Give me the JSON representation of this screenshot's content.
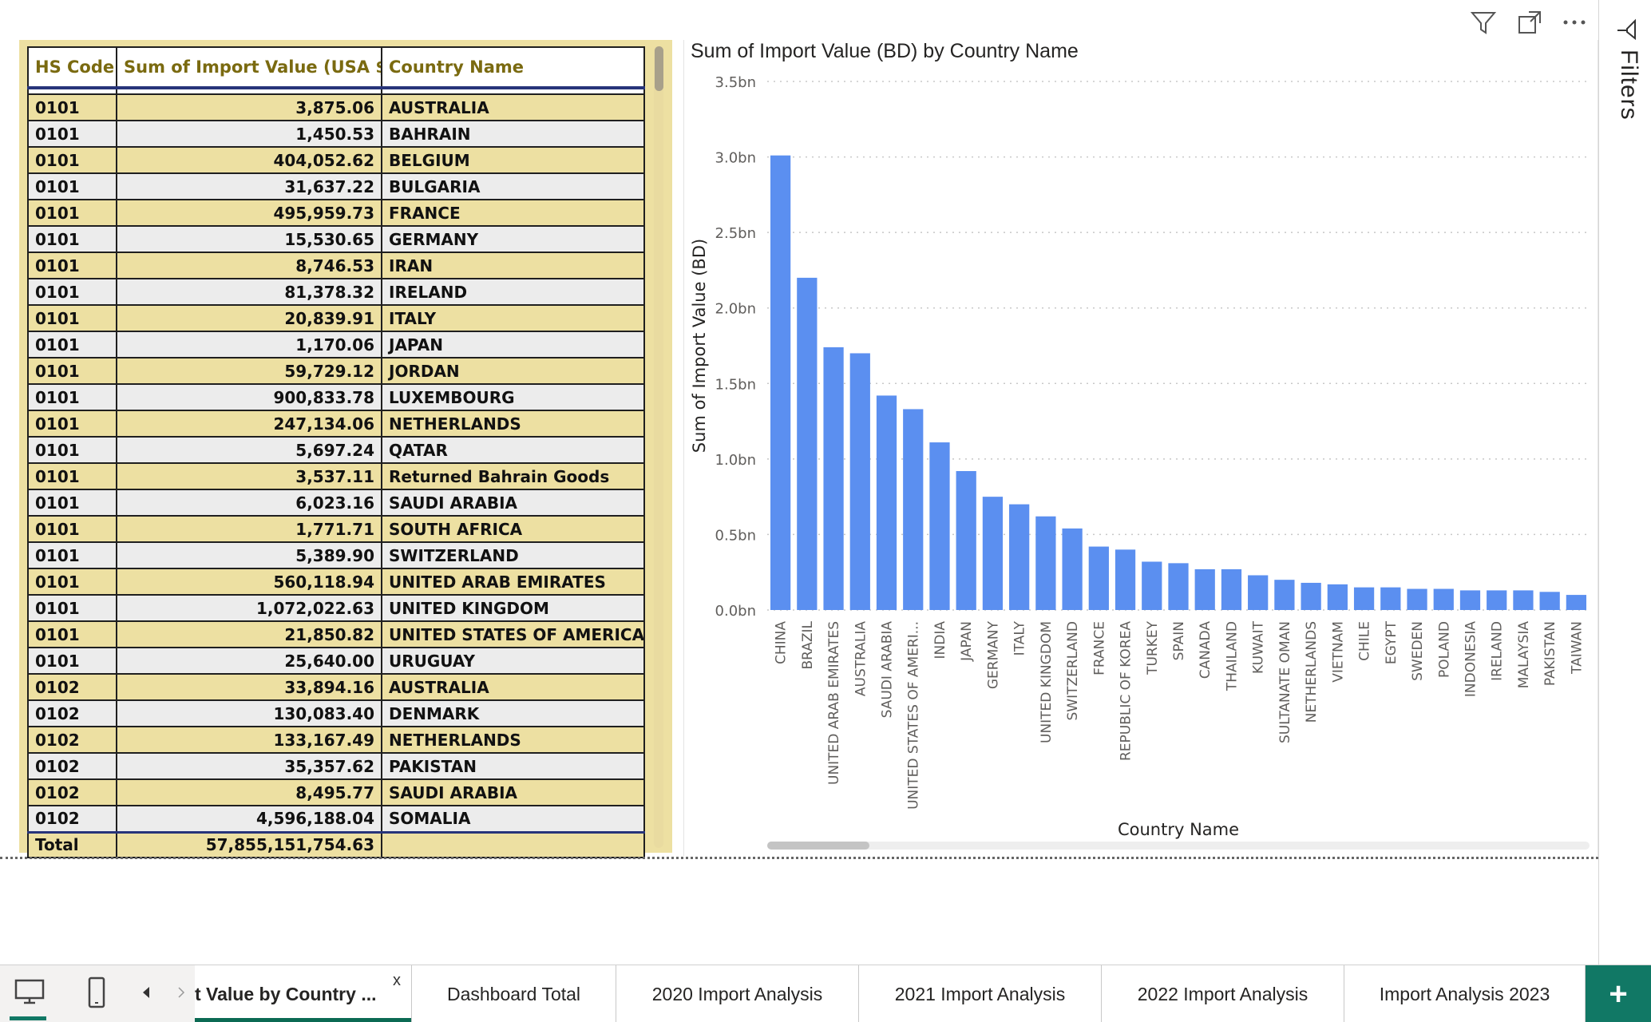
{
  "table": {
    "headers": [
      "HS Code",
      "Sum of Import Value (USA $)",
      "Country Name"
    ],
    "rows": [
      [
        "0101",
        "3,875.06",
        "AUSTRALIA"
      ],
      [
        "0101",
        "1,450.53",
        "BAHRAIN"
      ],
      [
        "0101",
        "404,052.62",
        "BELGIUM"
      ],
      [
        "0101",
        "31,637.22",
        "BULGARIA"
      ],
      [
        "0101",
        "495,959.73",
        "FRANCE"
      ],
      [
        "0101",
        "15,530.65",
        "GERMANY"
      ],
      [
        "0101",
        "8,746.53",
        "IRAN"
      ],
      [
        "0101",
        "81,378.32",
        "IRELAND"
      ],
      [
        "0101",
        "20,839.91",
        "ITALY"
      ],
      [
        "0101",
        "1,170.06",
        "JAPAN"
      ],
      [
        "0101",
        "59,729.12",
        "JORDAN"
      ],
      [
        "0101",
        "900,833.78",
        "LUXEMBOURG"
      ],
      [
        "0101",
        "247,134.06",
        "NETHERLANDS"
      ],
      [
        "0101",
        "5,697.24",
        "QATAR"
      ],
      [
        "0101",
        "3,537.11",
        "Returned Bahrain Goods"
      ],
      [
        "0101",
        "6,023.16",
        "SAUDI ARABIA"
      ],
      [
        "0101",
        "1,771.71",
        "SOUTH AFRICA"
      ],
      [
        "0101",
        "5,389.90",
        "SWITZERLAND"
      ],
      [
        "0101",
        "560,118.94",
        "UNITED ARAB EMIRATES"
      ],
      [
        "0101",
        "1,072,022.63",
        "UNITED KINGDOM"
      ],
      [
        "0101",
        "21,850.82",
        "UNITED STATES OF AMERICA"
      ],
      [
        "0101",
        "25,640.00",
        "URUGUAY"
      ],
      [
        "0102",
        "33,894.16",
        "AUSTRALIA"
      ],
      [
        "0102",
        "130,083.40",
        "DENMARK"
      ],
      [
        "0102",
        "133,167.49",
        "NETHERLANDS"
      ],
      [
        "0102",
        "35,357.62",
        "PAKISTAN"
      ],
      [
        "0102",
        "8,495.77",
        "SAUDI ARABIA"
      ],
      [
        "0102",
        "4,596,188.04",
        "SOMALIA"
      ]
    ],
    "total": {
      "label": "Total",
      "value": "57,855,151,754.63",
      "country": ""
    }
  },
  "chart_data": {
    "type": "bar",
    "title": "Sum of Import Value (BD) by Country Name",
    "xlabel": "Country Name",
    "ylabel": "Sum of Import Value (BD)",
    "ylim": [
      0,
      3.5
    ],
    "ytick_values": [
      0,
      0.5,
      1.0,
      1.5,
      2.0,
      2.5,
      3.0,
      3.5
    ],
    "yticks": [
      "0.0bn",
      "0.5bn",
      "1.0bn",
      "1.5bn",
      "2.0bn",
      "2.5bn",
      "3.0bn",
      "3.5bn"
    ],
    "grid": true,
    "bar_color": "#5b8ff0",
    "categories": [
      "CHINA",
      "BRAZIL",
      "UNITED ARAB EMIRATES",
      "AUSTRALIA",
      "SAUDI ARABIA",
      "UNITED STATES OF AMERI...",
      "INDIA",
      "JAPAN",
      "GERMANY",
      "ITALY",
      "UNITED KINGDOM",
      "SWITZERLAND",
      "FRANCE",
      "REPUBLIC OF KOREA",
      "TURKEY",
      "SPAIN",
      "CANADA",
      "THAILAND",
      "KUWAIT",
      "SULTANATE OMAN",
      "NETHERLANDS",
      "VIETNAM",
      "CHILE",
      "EGYPT",
      "SWEDEN",
      "POLAND",
      "INDONESIA",
      "IRELAND",
      "MALAYSIA",
      "PAKISTAN",
      "TAIWAN"
    ],
    "values": [
      3.01,
      2.2,
      1.74,
      1.7,
      1.42,
      1.33,
      1.11,
      0.92,
      0.75,
      0.7,
      0.62,
      0.54,
      0.42,
      0.4,
      0.32,
      0.31,
      0.27,
      0.27,
      0.23,
      0.2,
      0.18,
      0.17,
      0.15,
      0.15,
      0.14,
      0.14,
      0.13,
      0.13,
      0.13,
      0.12,
      0.1
    ]
  },
  "filters": {
    "label": "Filters"
  },
  "tabs": {
    "active_label": "t Value by Country ...",
    "close_label": "x",
    "items": [
      "Dashboard Total",
      "2020 Import Analysis",
      "2021 Import Analysis",
      "2022 Import Analysis",
      "Import Analysis 2023"
    ],
    "add_label": "+"
  },
  "icons": {
    "filter": "filter-icon",
    "focus": "focus-mode-icon",
    "more": "more-options-icon",
    "desktop": "desktop-view-icon",
    "mobile": "mobile-view-icon"
  },
  "colors": {
    "tab_accent": "#0b6a53",
    "add_tab_bg": "#117865",
    "table_bg": "#ede0a2"
  }
}
